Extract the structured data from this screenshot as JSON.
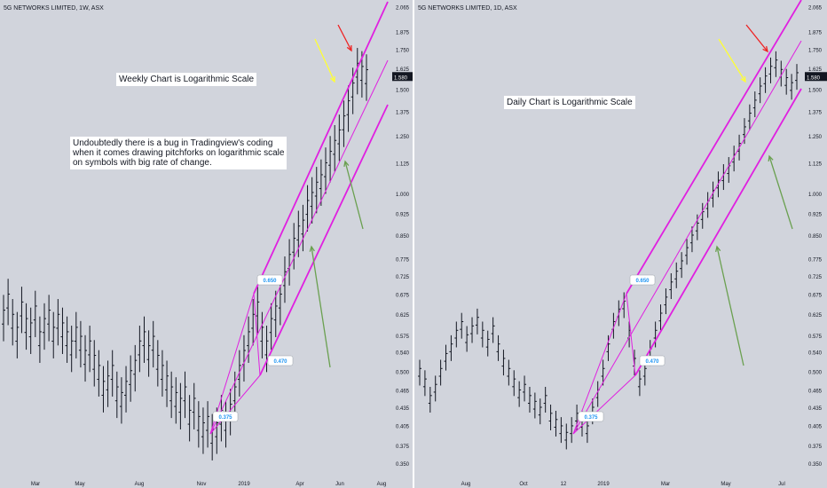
{
  "colors": {
    "background": "#d1d4dc",
    "bars": "#131722",
    "pitchfork": "#e020e0",
    "red_arrow": "#ee2222",
    "yellow_arrow": "#ffff33",
    "green_arrow": "#6aa050",
    "badge_text": "#2196f3",
    "price_tag_bg": "#131722",
    "price_tag_text": "#ffffff"
  },
  "chart_data": [
    {
      "type": "ohlc-bar",
      "panel": "left",
      "title": "5G NETWORKS LIMITED, 1W, ASX",
      "scale": "logarithmic",
      "ylim": [
        0.33,
        2.07
      ],
      "y_ticks": [
        "2.065",
        "1.875",
        "1.750",
        "1.625",
        "1.500",
        "1.375",
        "1.250",
        "1.125",
        "1.000",
        "0.925",
        "0.850",
        "0.775",
        "0.725",
        "0.675",
        "0.625",
        "0.575",
        "0.540",
        "0.500",
        "0.465",
        "0.435",
        "0.405",
        "0.375",
        "0.350"
      ],
      "x_ticks": [
        "Mar",
        "May",
        "Aug",
        "Nov",
        "2019",
        "Apr",
        "Jun",
        "Aug"
      ],
      "last_price": "1.580",
      "annotations": [
        "Weekly Chart is Logarithmic Scale",
        "Undoubtedly there is a bug in Tradingview's coding\nwhen it comes drawing pitchforks on logarithmic scale\non symbols with big rate of change."
      ],
      "pitchfork_labels": [
        "0.650",
        "0.470",
        "0.375"
      ],
      "series": [
        {
          "values": [
            0.62,
            0.66,
            0.61,
            0.58,
            0.64,
            0.6,
            0.59,
            0.63,
            0.57,
            0.6,
            0.62,
            0.58,
            0.61,
            0.59,
            0.57,
            0.55,
            0.58,
            0.56,
            0.53,
            0.55,
            0.52,
            0.5,
            0.47,
            0.48,
            0.5,
            0.46,
            0.45,
            0.47,
            0.49,
            0.51,
            0.55,
            0.57,
            0.54,
            0.56,
            0.52,
            0.5,
            0.48,
            0.46,
            0.45,
            0.44,
            0.46,
            0.42,
            0.44,
            0.41,
            0.4,
            0.41,
            0.39,
            0.4,
            0.42,
            0.41,
            0.43,
            0.46,
            0.5,
            0.53,
            0.57,
            0.61,
            0.64,
            0.58,
            0.55,
            0.6,
            0.63,
            0.66,
            0.72,
            0.77,
            0.82,
            0.86,
            0.88,
            0.95,
            0.98,
            1.02,
            1.05,
            1.1,
            1.15,
            1.2,
            1.25,
            1.32,
            1.4,
            1.5,
            1.62,
            1.6,
            1.58
          ]
        }
      ]
    },
    {
      "type": "ohlc-bar",
      "panel": "right",
      "title": "5G NETWORKS LIMITED, 1D, ASX",
      "scale": "logarithmic",
      "ylim": [
        0.33,
        2.07
      ],
      "y_ticks": [
        "2.065",
        "1.875",
        "1.750",
        "1.625",
        "1.500",
        "1.375",
        "1.250",
        "1.125",
        "1.000",
        "0.925",
        "0.850",
        "0.775",
        "0.725",
        "0.675",
        "0.625",
        "0.575",
        "0.540",
        "0.500",
        "0.465",
        "0.435",
        "0.405",
        "0.375",
        "0.350"
      ],
      "x_ticks": [
        "Aug",
        "Oct",
        "12",
        "2019",
        "Mar",
        "May",
        "Jul"
      ],
      "last_price": "1.580",
      "annotations": [
        "Daily Chart is Logarithmic Scale"
      ],
      "pitchfork_labels": [
        "0.650",
        "0.470",
        "0.375"
      ],
      "series": [
        {
          "values": [
            0.5,
            0.48,
            0.45,
            0.47,
            0.5,
            0.53,
            0.55,
            0.58,
            0.6,
            0.57,
            0.59,
            0.61,
            0.58,
            0.56,
            0.59,
            0.55,
            0.52,
            0.5,
            0.48,
            0.46,
            0.47,
            0.45,
            0.44,
            0.43,
            0.45,
            0.42,
            0.41,
            0.4,
            0.39,
            0.4,
            0.42,
            0.41,
            0.4,
            0.43,
            0.46,
            0.5,
            0.55,
            0.6,
            0.63,
            0.65,
            0.58,
            0.52,
            0.48,
            0.5,
            0.54,
            0.58,
            0.62,
            0.66,
            0.7,
            0.73,
            0.76,
            0.8,
            0.84,
            0.88,
            0.92,
            0.96,
            1.0,
            1.04,
            1.07,
            1.1,
            1.15,
            1.2,
            1.28,
            1.35,
            1.42,
            1.5,
            1.56,
            1.62,
            1.66,
            1.6,
            1.55,
            1.52,
            1.58
          ]
        }
      ]
    }
  ]
}
